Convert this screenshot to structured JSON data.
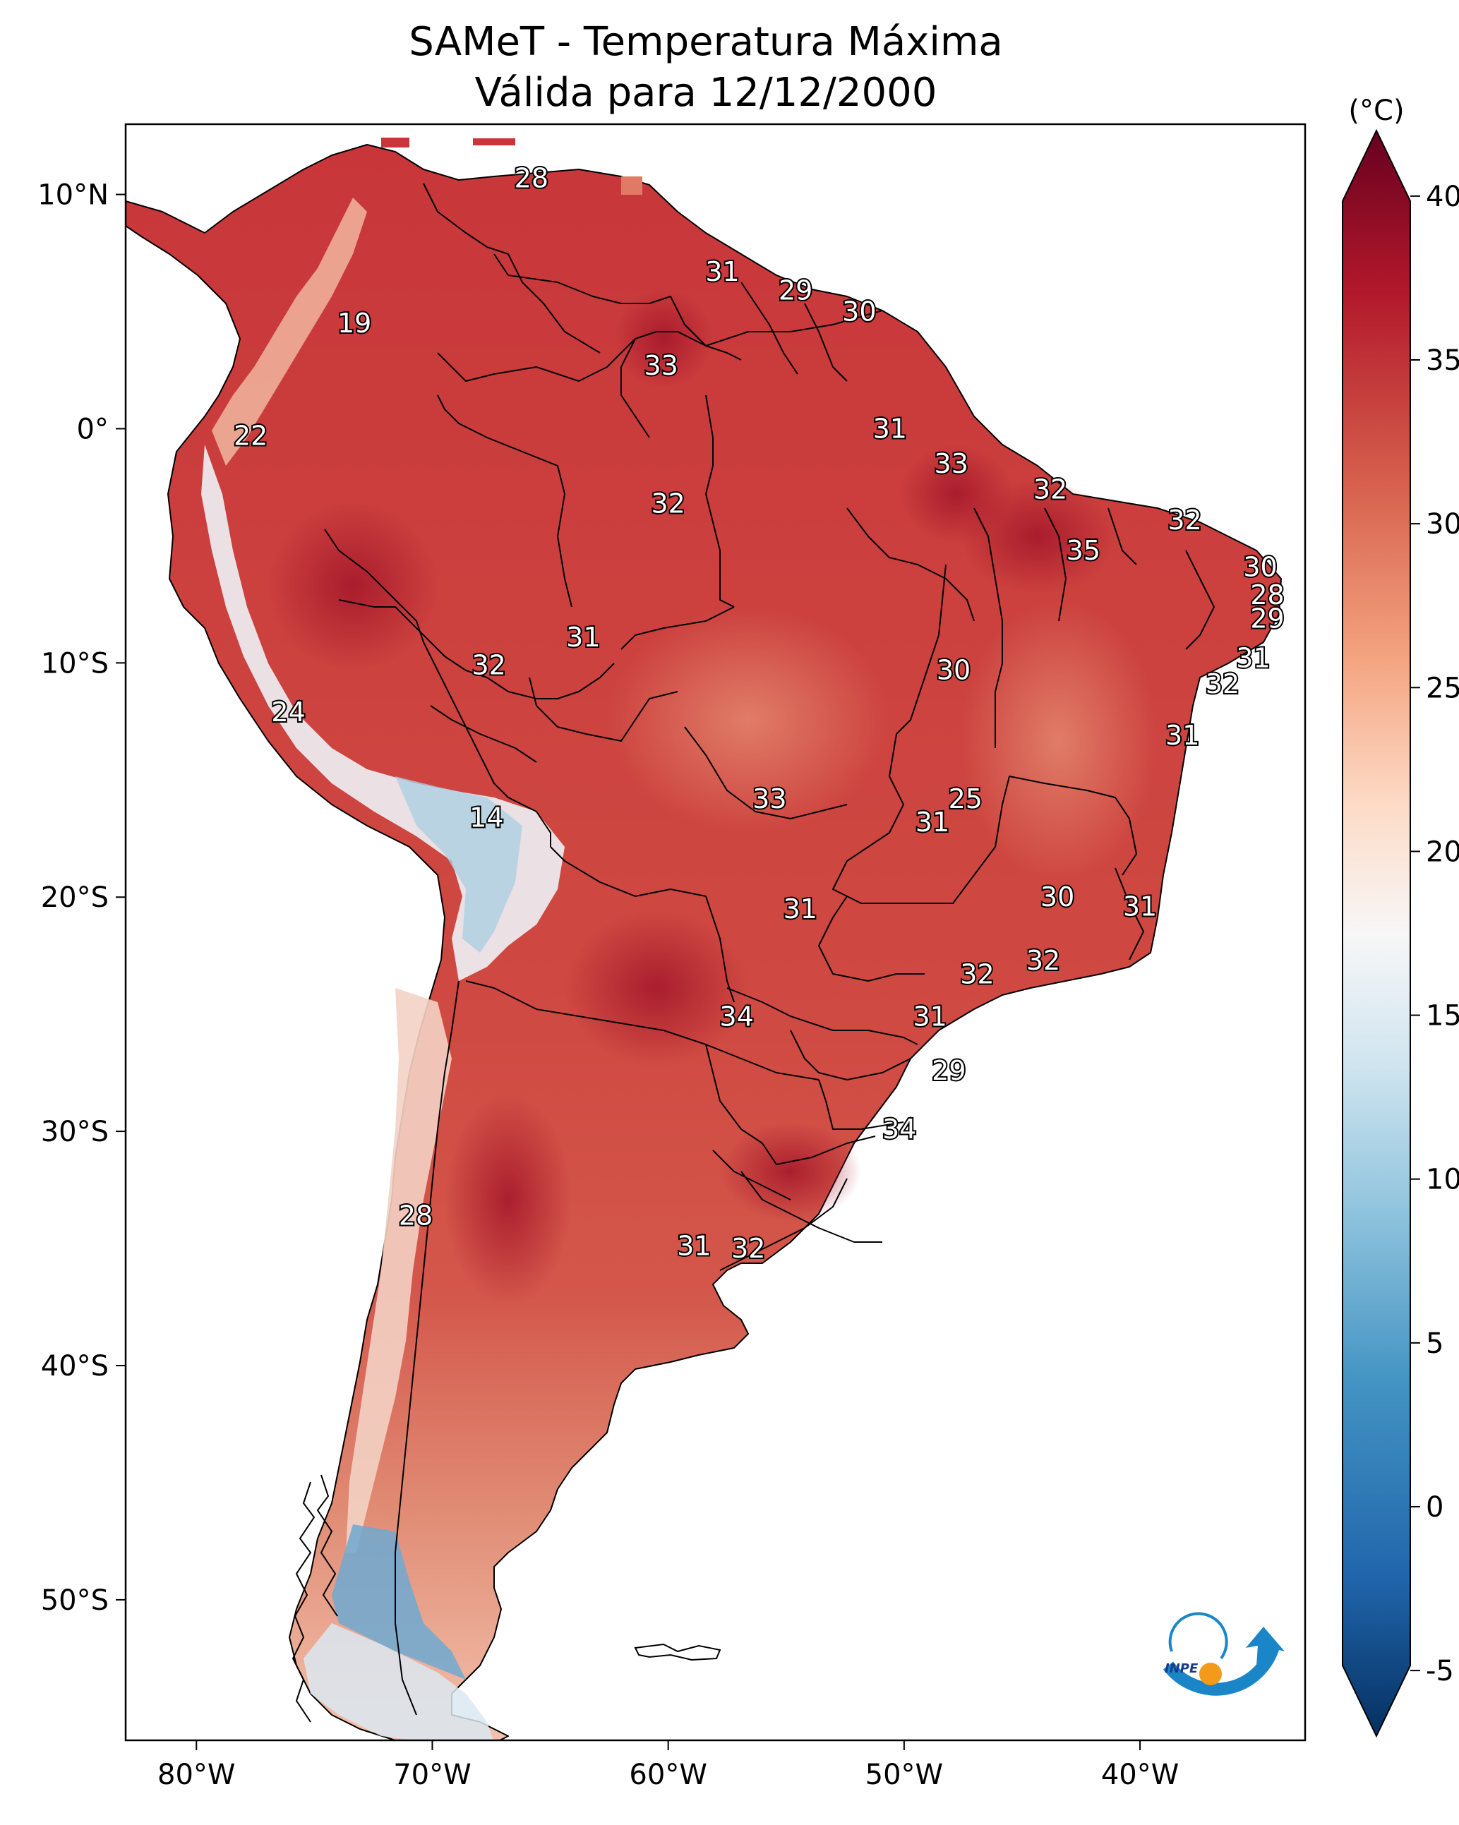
{
  "title": {
    "line1": "SAMeT - Temperatura Máxima",
    "line2": "Válida para 12/12/2000"
  },
  "map": {
    "lon_range": [
      -83,
      -33
    ],
    "lat_range": [
      -56,
      13
    ],
    "x_ticks": [
      {
        "value": -80,
        "label": "80°W"
      },
      {
        "value": -70,
        "label": "70°W"
      },
      {
        "value": -60,
        "label": "60°W"
      },
      {
        "value": -50,
        "label": "50°W"
      },
      {
        "value": -40,
        "label": "40°W"
      }
    ],
    "y_ticks": [
      {
        "value": 10,
        "label": "10°N"
      },
      {
        "value": 0,
        "label": "0°"
      },
      {
        "value": -10,
        "label": "10°S"
      },
      {
        "value": -20,
        "label": "20°S"
      },
      {
        "value": -30,
        "label": "30°S"
      },
      {
        "value": -40,
        "label": "40°S"
      },
      {
        "value": -50,
        "label": "50°S"
      }
    ],
    "point_labels": [
      {
        "text": "28",
        "lon": -65.8,
        "lat": 10.7
      },
      {
        "text": "19",
        "lon": -73.3,
        "lat": 4.5
      },
      {
        "text": "31",
        "lon": -57.7,
        "lat": 6.7
      },
      {
        "text": "29",
        "lon": -54.6,
        "lat": 5.9
      },
      {
        "text": "30",
        "lon": -51.9,
        "lat": 5.0
      },
      {
        "text": "33",
        "lon": -60.3,
        "lat": 2.7
      },
      {
        "text": "22",
        "lon": -77.7,
        "lat": -0.3
      },
      {
        "text": "31",
        "lon": -50.6,
        "lat": 0.0
      },
      {
        "text": "33",
        "lon": -48.0,
        "lat": -1.5
      },
      {
        "text": "32",
        "lon": -60.0,
        "lat": -3.2
      },
      {
        "text": "32",
        "lon": -43.8,
        "lat": -2.6
      },
      {
        "text": "32",
        "lon": -38.1,
        "lat": -3.9
      },
      {
        "text": "35",
        "lon": -42.4,
        "lat": -5.2
      },
      {
        "text": "30",
        "lon": -34.9,
        "lat": -5.9
      },
      {
        "text": "28",
        "lon": -34.6,
        "lat": -7.1
      },
      {
        "text": "29",
        "lon": -34.6,
        "lat": -8.1
      },
      {
        "text": "31",
        "lon": -63.6,
        "lat": -8.9
      },
      {
        "text": "32",
        "lon": -67.6,
        "lat": -10.1
      },
      {
        "text": "30",
        "lon": -47.9,
        "lat": -10.3
      },
      {
        "text": "31",
        "lon": -35.2,
        "lat": -9.8
      },
      {
        "text": "32",
        "lon": -36.5,
        "lat": -10.9
      },
      {
        "text": "24",
        "lon": -76.1,
        "lat": -12.1
      },
      {
        "text": "31",
        "lon": -38.2,
        "lat": -13.1
      },
      {
        "text": "33",
        "lon": -55.7,
        "lat": -15.8
      },
      {
        "text": "25",
        "lon": -47.4,
        "lat": -15.8
      },
      {
        "text": "14",
        "lon": -67.7,
        "lat": -16.6
      },
      {
        "text": "31",
        "lon": -48.8,
        "lat": -16.8
      },
      {
        "text": "31",
        "lon": -54.4,
        "lat": -20.5
      },
      {
        "text": "30",
        "lon": -43.5,
        "lat": -20.0
      },
      {
        "text": "31",
        "lon": -40.0,
        "lat": -20.4
      },
      {
        "text": "32",
        "lon": -44.1,
        "lat": -22.7
      },
      {
        "text": "32",
        "lon": -46.9,
        "lat": -23.3
      },
      {
        "text": "34",
        "lon": -57.1,
        "lat": -25.1
      },
      {
        "text": "31",
        "lon": -48.9,
        "lat": -25.1
      },
      {
        "text": "29",
        "lon": -48.1,
        "lat": -27.4
      },
      {
        "text": "34",
        "lon": -50.2,
        "lat": -29.9
      },
      {
        "text": "28",
        "lon": -70.7,
        "lat": -33.6
      },
      {
        "text": "31",
        "lon": -58.9,
        "lat": -34.9
      },
      {
        "text": "32",
        "lon": -56.6,
        "lat": -35.0
      }
    ]
  },
  "colorbar": {
    "unit_label": "(°C)",
    "min": -7,
    "max": 42,
    "ticks": [
      {
        "value": 40,
        "label": "40"
      },
      {
        "value": 35,
        "label": "35"
      },
      {
        "value": 30,
        "label": "30"
      },
      {
        "value": 25,
        "label": "25"
      },
      {
        "value": 20,
        "label": "20"
      },
      {
        "value": 15,
        "label": "15"
      },
      {
        "value": 10,
        "label": "10"
      },
      {
        "value": 5,
        "label": "5"
      },
      {
        "value": 0,
        "label": "0"
      },
      {
        "value": -5,
        "label": "-5"
      }
    ]
  },
  "logo": {
    "text": "INPE",
    "colors": {
      "arc": "#1a86c8",
      "dot": "#f39a1a"
    }
  },
  "colors": {
    "dark_red": "#67001f",
    "red": "#b2182b",
    "orange_red": "#d6604d",
    "salmon": "#f4a582",
    "pink": "#fddbc7",
    "white": "#f7f7f7",
    "light_blue": "#d1e5f0",
    "sky_blue": "#92c5de",
    "blue": "#4393c3",
    "dark_blue": "#2166ac",
    "navy": "#053061"
  }
}
